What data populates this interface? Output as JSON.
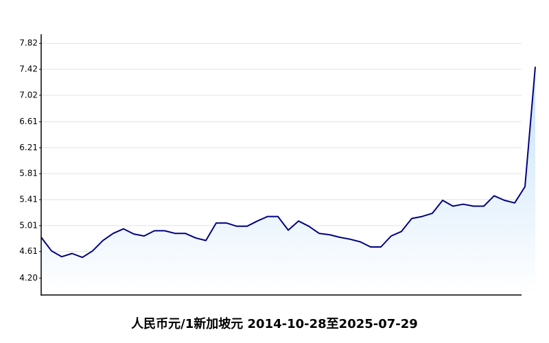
{
  "chart_data": {
    "type": "line",
    "title": "人民币元/1新加坡元  2014-10-28至2025-07-29",
    "values": [
      4.83,
      4.62,
      4.53,
      4.58,
      4.52,
      4.62,
      4.78,
      4.89,
      4.96,
      4.88,
      4.85,
      4.93,
      4.93,
      4.89,
      4.89,
      4.82,
      4.78,
      5.05,
      5.05,
      5.0,
      5.0,
      5.08,
      5.15,
      5.15,
      4.94,
      5.08,
      5.0,
      4.89,
      4.87,
      4.83,
      4.8,
      4.76,
      4.68,
      4.68,
      4.85,
      4.92,
      5.12,
      5.15,
      5.2,
      5.4,
      5.31,
      5.34,
      5.31,
      5.31,
      5.47,
      5.4,
      5.36,
      5.61,
      7.46
    ],
    "color": "#000080",
    "area": true,
    "ylim": [
      3.94,
      7.96
    ],
    "yticks": [
      {
        "value": 4.2,
        "label": "4.20"
      },
      4.61,
      5.01,
      5.41,
      5.81,
      6.21,
      6.61,
      7.02,
      7.42,
      7.82
    ],
    "grid": true
  }
}
